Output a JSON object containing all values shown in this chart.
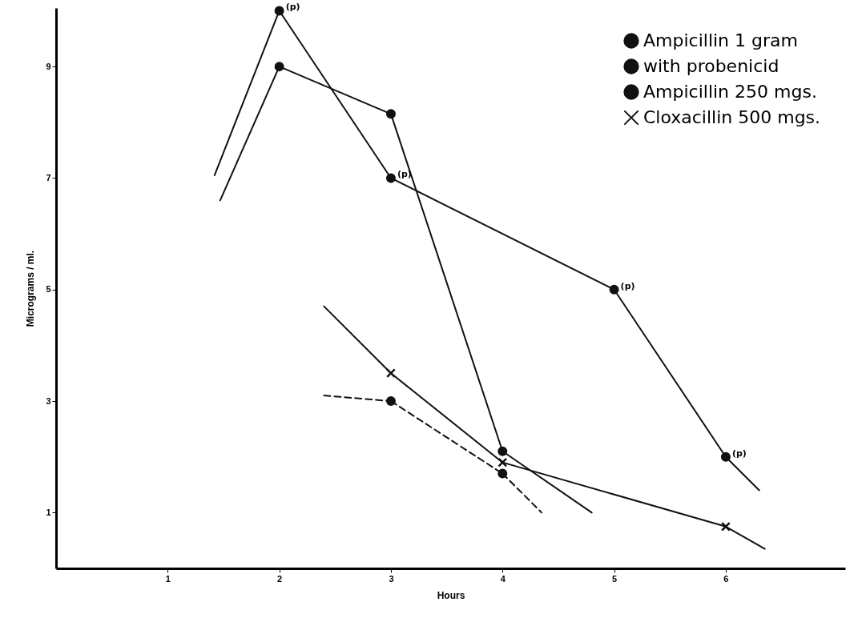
{
  "chart_data": {
    "type": "line",
    "xlabel": "Hours",
    "ylabel": "Micrograms / ml.",
    "xlim": [
      0,
      7.07
    ],
    "ylim": [
      0,
      10.05
    ],
    "xticks": [
      1,
      2,
      3,
      4,
      5,
      6
    ],
    "yticks": [
      1,
      3,
      5,
      7,
      9
    ],
    "grid": false,
    "legend": "top right",
    "series": [
      {
        "name": "Ampicillin 1 gram",
        "color": "#111111",
        "x": [
          2,
          3,
          4
        ],
        "values": [
          9,
          8.15,
          2.1
        ],
        "marker": "circle",
        "line_style": "solid"
      },
      {
        "name": "with probenicid",
        "color": "#111111",
        "x": [
          2,
          3,
          5,
          6
        ],
        "values": [
          10,
          7,
          5,
          2
        ],
        "marker": "circle",
        "line_style": "solid"
      },
      {
        "name": "Ampicillin 250 mgs.",
        "color": "#111111",
        "x": [
          3,
          4
        ],
        "values": [
          3,
          1.7
        ],
        "marker": "circle",
        "line_style": "dashed"
      },
      {
        "name": "Cloxacillin 500 mgs.",
        "color": "#111111",
        "x": [
          3,
          4,
          6
        ],
        "values": [
          3.5,
          1.9,
          0.75
        ],
        "marker": "cross",
        "line_style": "solid"
      },
      {
        "color": "#111111",
        "x": [
          1.47,
          2
        ],
        "values": [
          6.6,
          9
        ],
        "marker": "none",
        "line_style": "solid"
      },
      {
        "color": "#111111",
        "x": [
          4,
          4.8
        ],
        "values": [
          2.1,
          1.0
        ],
        "marker": "none",
        "line_style": "solid"
      },
      {
        "color": "#111111",
        "x": [
          1.42,
          2
        ],
        "values": [
          7.05,
          10
        ],
        "marker": "none",
        "line_style": "solid"
      },
      {
        "color": "#111111",
        "x": [
          6,
          6.3
        ],
        "values": [
          2,
          1.4
        ],
        "marker": "none",
        "line_style": "solid"
      },
      {
        "color": "#111111",
        "x": [
          2.4,
          3
        ],
        "values": [
          3.1,
          3
        ],
        "marker": "none",
        "line_style": "dashed"
      },
      {
        "color": "#111111",
        "x": [
          4,
          4.35
        ],
        "values": [
          1.7,
          1.0
        ],
        "marker": "none",
        "line_style": "dashed"
      },
      {
        "color": "#111111",
        "x": [
          2.4,
          3
        ],
        "values": [
          4.7,
          3.5
        ],
        "marker": "none",
        "line_style": "solid"
      },
      {
        "color": "#111111",
        "x": [
          6,
          6.35
        ],
        "values": [
          0.75,
          0.35
        ],
        "marker": "none",
        "line_style": "solid"
      }
    ],
    "annotations": [
      {
        "text": "(p)",
        "x": 2,
        "y": 10
      },
      {
        "text": "(p)",
        "x": 3,
        "y": 7
      },
      {
        "text": "(p)",
        "x": 5,
        "y": 5
      },
      {
        "text": "(p)",
        "x": 6,
        "y": 2
      }
    ]
  }
}
